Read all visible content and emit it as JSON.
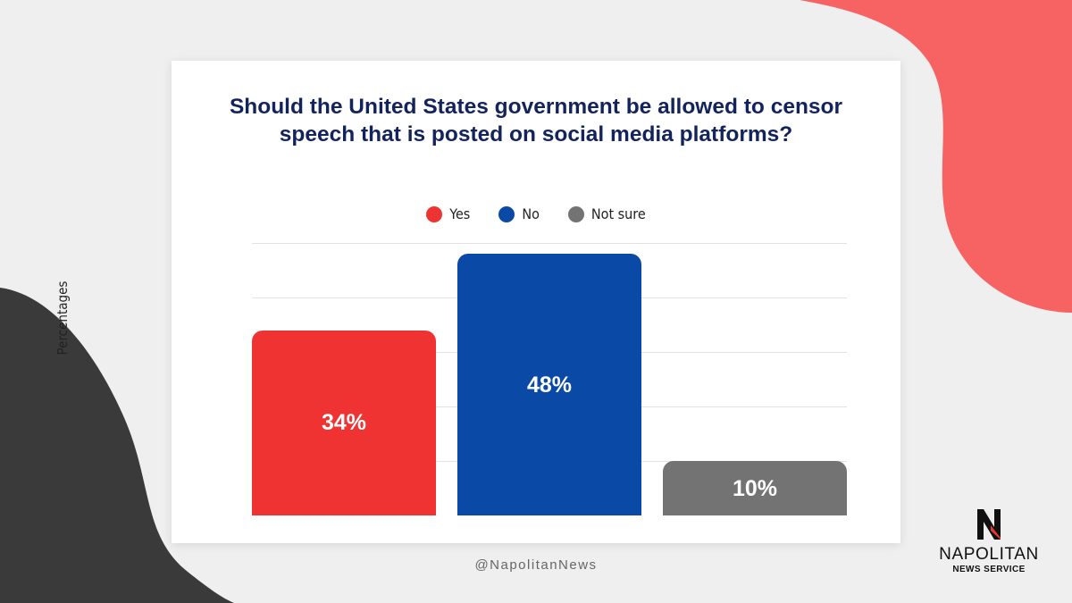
{
  "colors": {
    "yes": "#ef3333",
    "no": "#0a4aa6",
    "not_sure": "#737373",
    "title": "#13235b",
    "accent_bg": "#f76363",
    "dark_bg": "#3a3a3a"
  },
  "chart_data": {
    "type": "bar",
    "title": "Should the United States government be allowed to censor speech that is posted on social media platforms?",
    "ylabel": "Percentages",
    "xlabel": "",
    "ylim": [
      0,
      50
    ],
    "categories": [
      "Yes",
      "No",
      "Not sure"
    ],
    "values": [
      34,
      48,
      10
    ],
    "data_labels": [
      "34%",
      "48%",
      "10%"
    ],
    "legend": [
      {
        "label": "Yes",
        "color": "#ef3333"
      },
      {
        "label": "No",
        "color": "#0a4aa6"
      },
      {
        "label": "Not sure",
        "color": "#737373"
      }
    ]
  },
  "footer": {
    "handle": "@NapolitanNews"
  },
  "brand": {
    "name": "NAPOLITAN",
    "subtitle": "NEWS SERVICE"
  }
}
